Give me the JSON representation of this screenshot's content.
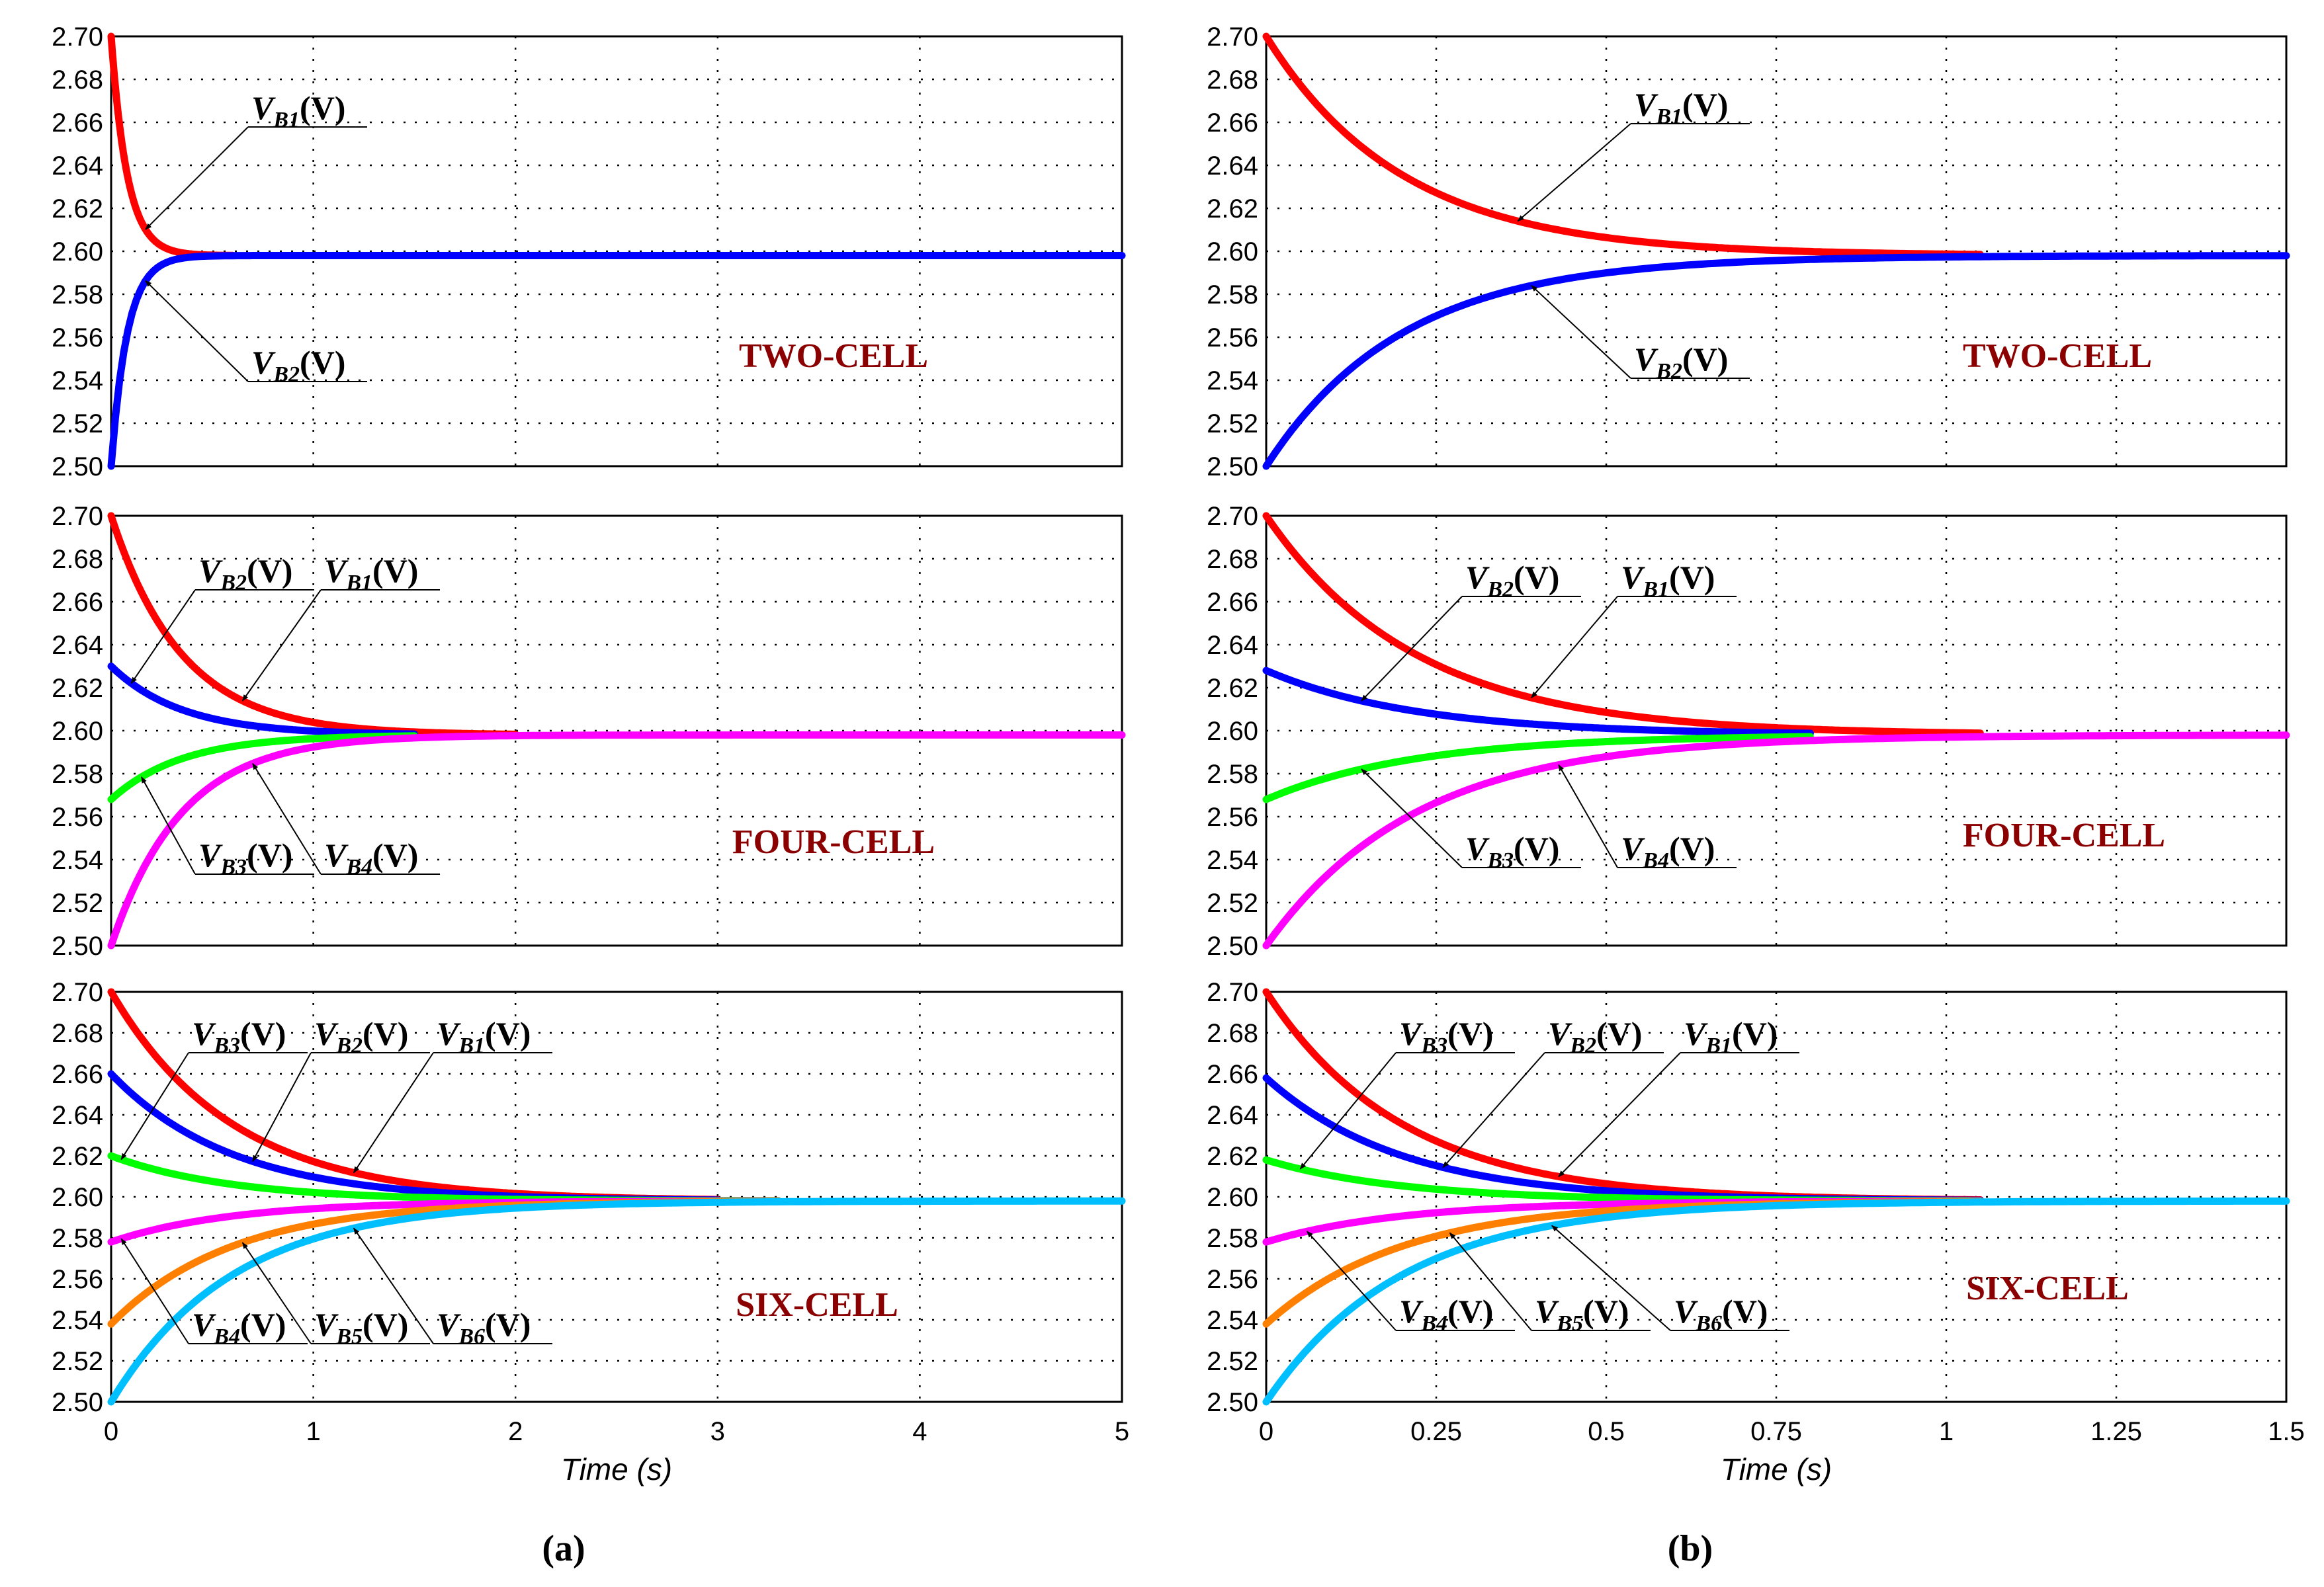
{
  "chart_data": [
    {
      "panel": "a",
      "type": "line",
      "subplots": [
        {
          "title": "TWO-CELL",
          "xlim": [
            0,
            5
          ],
          "ylim": [
            2.5,
            2.7
          ],
          "series": [
            {
              "name": "V_B1",
              "color": "#ff0000",
              "v0": 2.7,
              "final": 2.598,
              "tau": 0.08,
              "t_end": 0.6
            },
            {
              "name": "V_B2",
              "color": "#0000ff",
              "v0": 2.5,
              "final": 2.598,
              "tau": 0.08,
              "t_end": 5.0
            }
          ],
          "annotations": [
            {
              "series": "V_B1",
              "text": "V",
              "sub": "B1",
              "unit": "(V)",
              "t": 0.17
            },
            {
              "series": "V_B2",
              "text": "V",
              "sub": "B2",
              "unit": "(V)",
              "t": 0.17
            }
          ]
        },
        {
          "title": "FOUR-CELL",
          "xlim": [
            0,
            5
          ],
          "ylim": [
            2.5,
            2.7
          ],
          "series": [
            {
              "name": "V_B1",
              "color": "#ff0000",
              "v0": 2.7,
              "final": 2.598,
              "tau": 0.35,
              "t_end": 2.0
            },
            {
              "name": "V_B2",
              "color": "#0000ff",
              "v0": 2.63,
              "final": 2.598,
              "tau": 0.35,
              "t_end": 1.5
            },
            {
              "name": "V_B3",
              "color": "#00ff00",
              "v0": 2.568,
              "final": 2.598,
              "tau": 0.35,
              "t_end": 1.5
            },
            {
              "name": "V_B4",
              "color": "#ff00ff",
              "v0": 2.5,
              "final": 2.598,
              "tau": 0.35,
              "t_end": 5.0
            }
          ],
          "annotations": [
            {
              "series": "V_B2",
              "text": "V",
              "sub": "B2",
              "unit": "(V)",
              "t": 0.1
            },
            {
              "series": "V_B1",
              "text": "V",
              "sub": "B1",
              "unit": "(V)",
              "t": 0.65
            },
            {
              "series": "V_B3",
              "text": "V",
              "sub": "B3",
              "unit": "(V)",
              "t": 0.15
            },
            {
              "series": "V_B4",
              "text": "V",
              "sub": "B4",
              "unit": "(V)",
              "t": 0.7
            }
          ]
        },
        {
          "title": "SIX-CELL",
          "xlim": [
            0,
            5
          ],
          "ylim": [
            2.5,
            2.7
          ],
          "series": [
            {
              "name": "V_B1",
              "color": "#ff0000",
              "v0": 2.7,
              "final": 2.598,
              "tau": 0.6,
              "t_end": 3.0
            },
            {
              "name": "V_B2",
              "color": "#0000ff",
              "v0": 2.66,
              "final": 2.598,
              "tau": 0.6,
              "t_end": 3.0
            },
            {
              "name": "V_B3",
              "color": "#00ff00",
              "v0": 2.62,
              "final": 2.598,
              "tau": 0.6,
              "t_end": 3.3
            },
            {
              "name": "V_B4",
              "color": "#ff00ff",
              "v0": 2.578,
              "final": 2.598,
              "tau": 0.6,
              "t_end": 3.3
            },
            {
              "name": "V_B5",
              "color": "#ff7f00",
              "v0": 2.538,
              "final": 2.598,
              "tau": 0.6,
              "t_end": 3.3
            },
            {
              "name": "V_B6",
              "color": "#00bfff",
              "v0": 2.5,
              "final": 2.598,
              "tau": 0.6,
              "t_end": 5.0
            }
          ],
          "annotations": [
            {
              "series": "V_B3",
              "text": "V",
              "sub": "B3",
              "unit": "(V)",
              "t": 0.05
            },
            {
              "series": "V_B2",
              "text": "V",
              "sub": "B2",
              "unit": "(V)",
              "t": 0.7
            },
            {
              "series": "V_B1",
              "text": "V",
              "sub": "B1",
              "unit": "(V)",
              "t": 1.2
            },
            {
              "series": "V_B4",
              "text": "V",
              "sub": "B4",
              "unit": "(V)",
              "t": 0.05
            },
            {
              "series": "V_B5",
              "text": "V",
              "sub": "B5",
              "unit": "(V)",
              "t": 0.65
            },
            {
              "series": "V_B6",
              "text": "V",
              "sub": "B6",
              "unit": "(V)",
              "t": 1.2
            }
          ]
        }
      ],
      "xticks": [
        "0",
        "1",
        "2",
        "3",
        "4",
        "5"
      ],
      "xlabel": "Time (s)",
      "label": "(a)"
    },
    {
      "panel": "b",
      "type": "line",
      "subplots": [
        {
          "title": "TWO-CELL",
          "xlim": [
            0,
            1.5
          ],
          "ylim": [
            2.5,
            2.7
          ],
          "series": [
            {
              "name": "V_B1",
              "color": "#ff0000",
              "v0": 2.7,
              "final": 2.598,
              "tau": 0.2,
              "t_end": 1.05
            },
            {
              "name": "V_B2",
              "color": "#0000ff",
              "v0": 2.5,
              "final": 2.598,
              "tau": 0.2,
              "t_end": 1.5
            }
          ],
          "annotations": [
            {
              "series": "V_B1",
              "text": "V",
              "sub": "B1",
              "unit": "(V)",
              "t": 0.37
            },
            {
              "series": "V_B2",
              "text": "V",
              "sub": "B2",
              "unit": "(V)",
              "t": 0.39
            }
          ]
        },
        {
          "title": "FOUR-CELL",
          "xlim": [
            0,
            1.5
          ],
          "ylim": [
            2.5,
            2.7
          ],
          "series": [
            {
              "name": "V_B1",
              "color": "#ff0000",
              "v0": 2.7,
              "final": 2.598,
              "tau": 0.22,
              "t_end": 1.05
            },
            {
              "name": "V_B2",
              "color": "#0000ff",
              "v0": 2.628,
              "final": 2.598,
              "tau": 0.22,
              "t_end": 0.8
            },
            {
              "name": "V_B3",
              "color": "#00ff00",
              "v0": 2.568,
              "final": 2.598,
              "tau": 0.22,
              "t_end": 0.8
            },
            {
              "name": "V_B4",
              "color": "#ff00ff",
              "v0": 2.5,
              "final": 2.598,
              "tau": 0.22,
              "t_end": 1.5
            }
          ],
          "annotations": [
            {
              "series": "V_B2",
              "text": "V",
              "sub": "B2",
              "unit": "(V)",
              "t": 0.14
            },
            {
              "series": "V_B1",
              "text": "V",
              "sub": "B1",
              "unit": "(V)",
              "t": 0.39
            },
            {
              "series": "V_B3",
              "text": "V",
              "sub": "B3",
              "unit": "(V)",
              "t": 0.14
            },
            {
              "series": "V_B4",
              "text": "V",
              "sub": "B4",
              "unit": "(V)",
              "t": 0.43
            }
          ]
        },
        {
          "title": "SIX-CELL",
          "xlim": [
            0,
            1.5
          ],
          "ylim": [
            2.5,
            2.7
          ],
          "series": [
            {
              "name": "V_B1",
              "color": "#ff0000",
              "v0": 2.7,
              "final": 2.598,
              "tau": 0.2,
              "t_end": 1.05
            },
            {
              "name": "V_B2",
              "color": "#0000ff",
              "v0": 2.658,
              "final": 2.598,
              "tau": 0.2,
              "t_end": 1.05
            },
            {
              "name": "V_B3",
              "color": "#00ff00",
              "v0": 2.618,
              "final": 2.598,
              "tau": 0.2,
              "t_end": 1.05
            },
            {
              "name": "V_B4",
              "color": "#ff00ff",
              "v0": 2.578,
              "final": 2.598,
              "tau": 0.2,
              "t_end": 1.05
            },
            {
              "name": "V_B5",
              "color": "#ff7f00",
              "v0": 2.538,
              "final": 2.598,
              "tau": 0.2,
              "t_end": 1.05
            },
            {
              "name": "V_B6",
              "color": "#00bfff",
              "v0": 2.5,
              "final": 2.598,
              "tau": 0.2,
              "t_end": 1.5
            }
          ],
          "annotations": [
            {
              "series": "V_B3",
              "text": "V",
              "sub": "B3",
              "unit": "(V)",
              "t": 0.05
            },
            {
              "series": "V_B2",
              "text": "V",
              "sub": "B2",
              "unit": "(V)",
              "t": 0.26
            },
            {
              "series": "V_B1",
              "text": "V",
              "sub": "B1",
              "unit": "(V)",
              "t": 0.43
            },
            {
              "series": "V_B4",
              "text": "V",
              "sub": "B4",
              "unit": "(V)",
              "t": 0.06
            },
            {
              "series": "V_B5",
              "text": "V",
              "sub": "B5",
              "unit": "(V)",
              "t": 0.27
            },
            {
              "series": "V_B6",
              "text": "V",
              "sub": "B6",
              "unit": "(V)",
              "t": 0.42
            }
          ]
        }
      ],
      "xticks": [
        "0",
        "0.25",
        "0.5",
        "0.75",
        "1",
        "1.25",
        "1.5"
      ],
      "xlabel": "Time (s)",
      "label": "(b)"
    }
  ],
  "yticks": [
    "2.50",
    "2.52",
    "2.54",
    "2.56",
    "2.58",
    "2.60",
    "2.62",
    "2.64",
    "2.66",
    "2.68",
    "2.70"
  ]
}
